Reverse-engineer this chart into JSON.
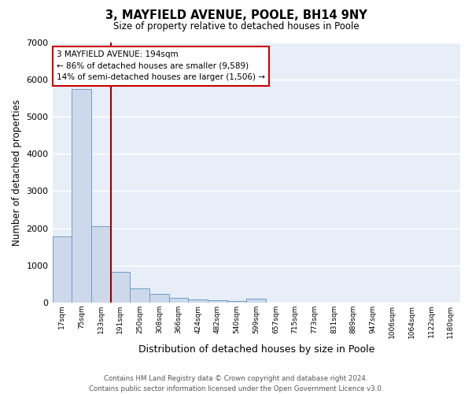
{
  "title1": "3, MAYFIELD AVENUE, POOLE, BH14 9NY",
  "title2": "Size of property relative to detached houses in Poole",
  "xlabel": "Distribution of detached houses by size in Poole",
  "ylabel": "Number of detached properties",
  "categories": [
    "17sqm",
    "75sqm",
    "133sqm",
    "191sqm",
    "250sqm",
    "308sqm",
    "366sqm",
    "424sqm",
    "482sqm",
    "540sqm",
    "599sqm",
    "657sqm",
    "715sqm",
    "773sqm",
    "831sqm",
    "889sqm",
    "947sqm",
    "1006sqm",
    "1064sqm",
    "1122sqm",
    "1180sqm"
  ],
  "values": [
    1780,
    5750,
    2060,
    830,
    370,
    230,
    120,
    90,
    60,
    40,
    110,
    0,
    0,
    0,
    0,
    0,
    0,
    0,
    0,
    0,
    0
  ],
  "bar_color": "#cdd8ea",
  "bar_edge_color": "#6a9fc8",
  "property_line_color": "#990000",
  "ylim": [
    0,
    7000
  ],
  "yticks": [
    0,
    1000,
    2000,
    3000,
    4000,
    5000,
    6000,
    7000
  ],
  "annotation_text": "3 MAYFIELD AVENUE: 194sqm\n← 86% of detached houses are smaller (9,589)\n14% of semi-detached houses are larger (1,506) →",
  "annotation_box_color": "#ffffff",
  "annotation_box_edge": "#cc0000",
  "footer": "Contains HM Land Registry data © Crown copyright and database right 2024.\nContains public sector information licensed under the Open Government Licence v3.0.",
  "bg_color": "#e8eef8",
  "grid_color": "#ffffff"
}
